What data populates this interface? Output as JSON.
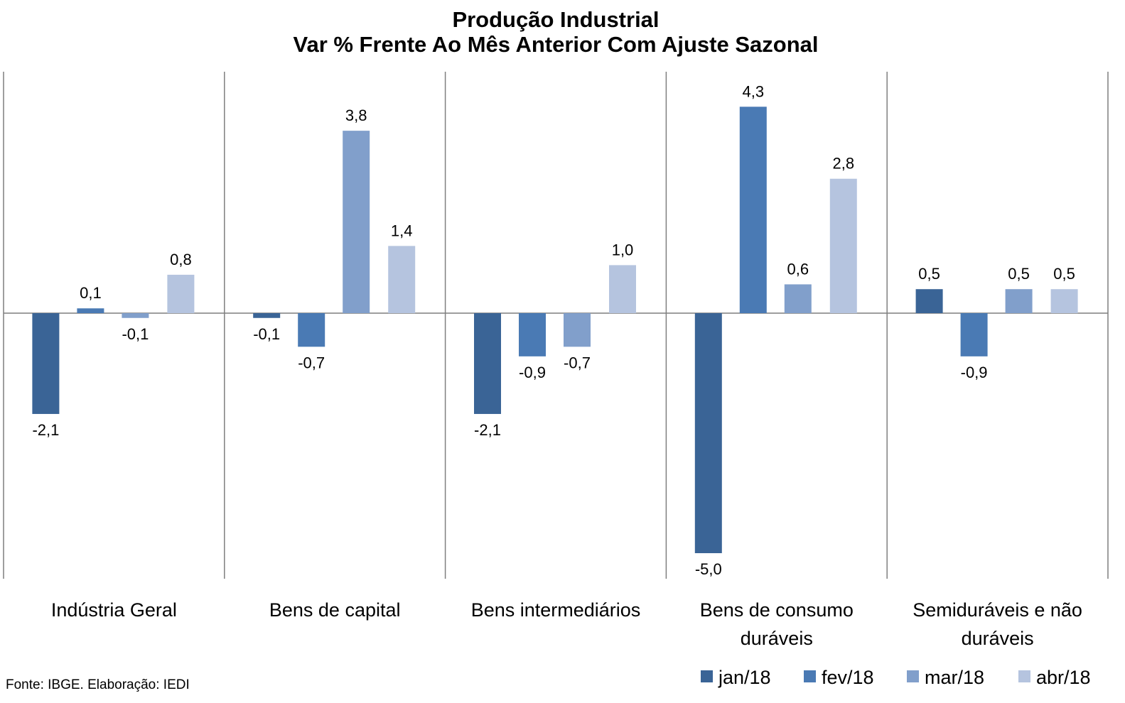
{
  "chart_data": {
    "type": "bar",
    "title_lines": [
      "Produção Industrial",
      "Var % Frente Ao Mês Anterior Com Ajuste Sazonal"
    ],
    "categories": [
      [
        "Indústria Geral"
      ],
      [
        "Bens de capital"
      ],
      [
        "Bens intermediários"
      ],
      [
        "Bens de consumo",
        "duráveis"
      ],
      [
        "Semiduráveis e não",
        "duráveis"
      ]
    ],
    "series": [
      {
        "name": "jan/18",
        "color": "#3a6496",
        "values": [
          -2.1,
          -0.1,
          -2.1,
          -5.0,
          0.5
        ],
        "labels": [
          "-2,1",
          "-0,1",
          "-2,1",
          "-5,0",
          "0,5"
        ]
      },
      {
        "name": "fev/18",
        "color": "#4a7ab4",
        "values": [
          0.1,
          -0.7,
          -0.9,
          4.3,
          -0.9
        ],
        "labels": [
          "0,1",
          "-0,7",
          "-0,9",
          "4,3",
          "-0,9"
        ]
      },
      {
        "name": "mar/18",
        "color": "#819fcb",
        "values": [
          -0.1,
          3.8,
          -0.7,
          0.6,
          0.5
        ],
        "labels": [
          "-0,1",
          "3,8",
          "-0,7",
          "0,6",
          "0,5"
        ]
      },
      {
        "name": "abr/18",
        "color": "#b5c4df",
        "values": [
          0.8,
          1.4,
          1.0,
          2.8,
          0.5
        ],
        "labels": [
          "0,8",
          "1,4",
          "1,0",
          "2,8",
          "0,5"
        ]
      }
    ],
    "ylim": [
      -5.5,
      5.0
    ],
    "legend_position": "bottom-right",
    "gridlines": false
  },
  "source": "Fonte: IBGE. Elaboração: IEDI"
}
